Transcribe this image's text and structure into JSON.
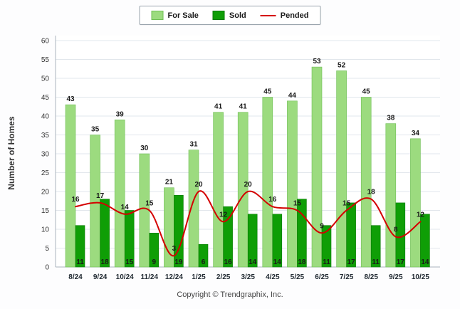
{
  "legend": {
    "items": [
      {
        "label": "For Sale",
        "type": "box",
        "color": "#9cdb7f",
        "border": "#6fbf55"
      },
      {
        "label": "Sold",
        "type": "box",
        "color": "#0f9e06",
        "border": "#0a7a04"
      },
      {
        "label": "Pended",
        "type": "line",
        "color": "#d40000"
      }
    ]
  },
  "y_axis_title": "Number of Homes",
  "footer": "Copyright © Trendgraphix, Inc.",
  "chart_data": {
    "type": "bar",
    "categories": [
      "8/24",
      "9/24",
      "10/24",
      "11/24",
      "12/24",
      "1/25",
      "2/25",
      "3/25",
      "4/25",
      "5/25",
      "6/25",
      "7/25",
      "8/25",
      "9/25",
      "10/25"
    ],
    "series": [
      {
        "name": "For Sale",
        "type": "bar",
        "color": "#9cdb7f",
        "border": "#6fbf55",
        "values": [
          43,
          35,
          39,
          30,
          21,
          31,
          41,
          41,
          45,
          44,
          53,
          52,
          45,
          38,
          34
        ]
      },
      {
        "name": "Sold",
        "type": "bar",
        "color": "#0f9e06",
        "border": "#0a7a04",
        "values": [
          11,
          18,
          15,
          9,
          19,
          6,
          16,
          14,
          14,
          18,
          11,
          17,
          11,
          17,
          14
        ]
      },
      {
        "name": "Pended",
        "type": "line",
        "color": "#d40000",
        "values": [
          16,
          17,
          14,
          15,
          3,
          20,
          12,
          20,
          16,
          15,
          9,
          15,
          18,
          8,
          12
        ]
      }
    ],
    "title": "",
    "xlabel": "",
    "ylabel": "Number of Homes",
    "ylim": [
      0,
      60
    ],
    "ytick_step": 5,
    "grid": true,
    "legend_position": "top"
  }
}
